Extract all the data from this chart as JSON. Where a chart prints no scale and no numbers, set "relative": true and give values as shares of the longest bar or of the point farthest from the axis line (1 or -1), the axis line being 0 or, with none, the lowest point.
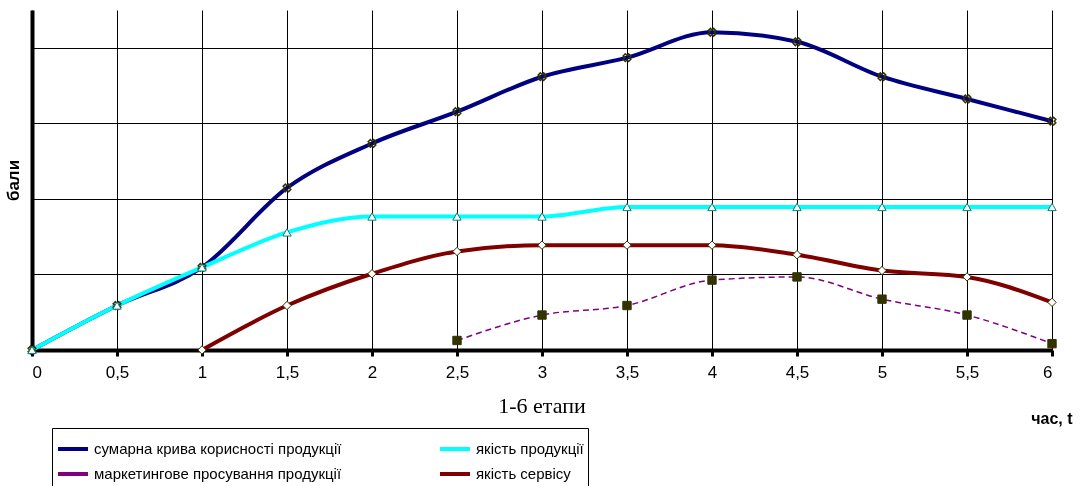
{
  "chart_data": {
    "type": "line",
    "relative": true,
    "xlabel": "час, t",
    "ylabel": "бали",
    "annotations": [
      "1-6 етапи"
    ],
    "x": [
      0,
      0.5,
      1,
      1.5,
      2,
      2.5,
      3,
      3.5,
      4,
      4.5,
      5,
      5.5,
      6
    ],
    "xlim": [
      0,
      6
    ],
    "xticks": [
      0,
      {
        "value": 0.5,
        "label": "0,5"
      },
      1,
      {
        "value": 1.5,
        "label": "1,5"
      },
      2,
      {
        "value": 2.5,
        "label": "2,5"
      },
      3,
      {
        "value": 3.5,
        "label": "3,5"
      },
      4,
      {
        "value": 4.5,
        "label": "4,5"
      },
      5,
      {
        "value": 5.5,
        "label": "5,5"
      },
      6
    ],
    "grid": true,
    "legend": "bottom",
    "series": [
      {
        "name": "сумарна крива корисності продукції",
        "color": "#000080",
        "marker": "cross",
        "line_style": "solid",
        "values": [
          0,
          0.14,
          0.26,
          0.51,
          0.65,
          0.75,
          0.86,
          0.92,
          1,
          0.97,
          0.86,
          0.79,
          0.72
        ]
      },
      {
        "name": "якість продукції",
        "color": "#00ffff",
        "marker": "triangle",
        "line_style": "solid",
        "values": [
          0,
          0.14,
          0.26,
          0.37,
          0.42,
          0.42,
          0.42,
          0.45,
          0.45,
          0.45,
          0.45,
          0.45,
          0.45
        ]
      },
      {
        "name": "маркетингове просування продукції",
        "color": "#800080",
        "marker": "square",
        "line_style": "dashed",
        "values": [
          null,
          null,
          null,
          null,
          null,
          0.03,
          0.11,
          0.14,
          0.22,
          0.23,
          0.16,
          0.11,
          0.02
        ]
      },
      {
        "name": "якість сервісу",
        "color": "#800000",
        "marker": "diamond",
        "line_style": "solid",
        "values": [
          null,
          null,
          0,
          0.14,
          0.24,
          0.31,
          0.33,
          0.33,
          0.33,
          0.3,
          0.25,
          0.23,
          0.15
        ]
      }
    ]
  }
}
